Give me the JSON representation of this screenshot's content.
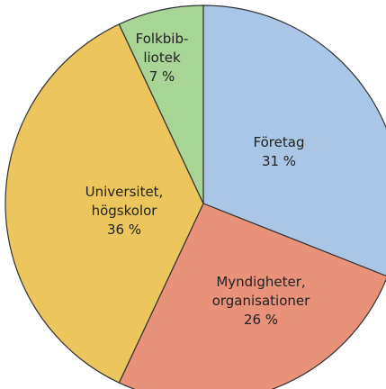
{
  "chart_data": {
    "type": "pie",
    "categories": [
      [
        "Företag"
      ],
      [
        "Myndigheter,",
        "organisationer"
      ],
      [
        "Universitet,",
        "högskolor"
      ],
      [
        "Folkbib-",
        "liotek"
      ]
    ],
    "values": [
      31,
      26,
      36,
      7
    ],
    "value_labels": [
      "31 %",
      "26 %",
      "36 %",
      "7 %"
    ],
    "colors": [
      "#a9c6e6",
      "#e8927a",
      "#ecc65c",
      "#a6d595"
    ]
  }
}
